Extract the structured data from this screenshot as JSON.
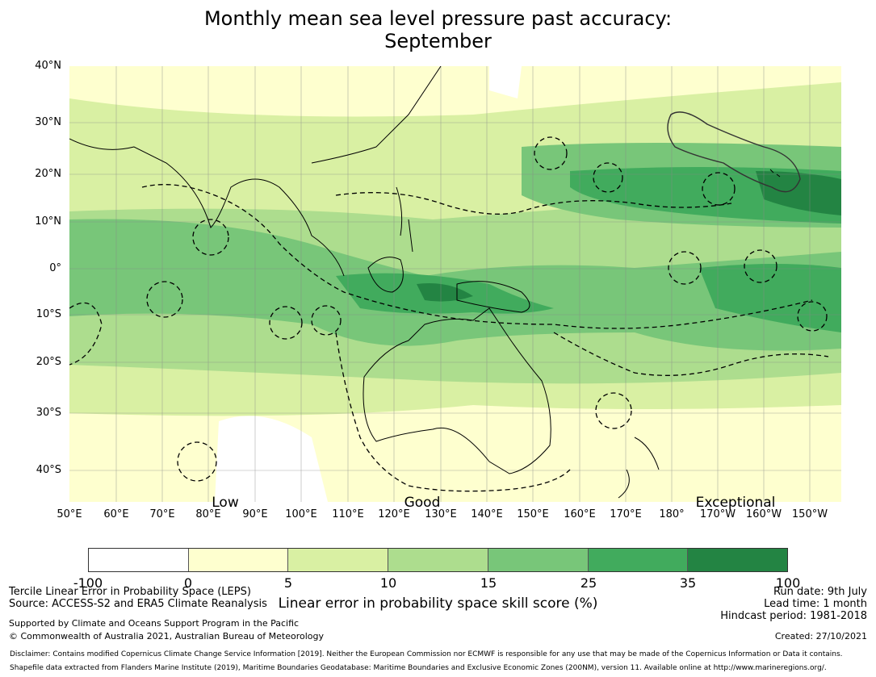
{
  "title_line1": "Monthly mean sea level pressure past accuracy:",
  "title_line2": "September",
  "lat_labels": [
    "40°N",
    "30°N",
    "20°N",
    "10°N",
    "0°",
    "10°S",
    "20°S",
    "30°S",
    "40°S"
  ],
  "lon_labels": [
    "50°E",
    "60°E",
    "70°E",
    "80°E",
    "90°E",
    "100°E",
    "110°E",
    "120°E",
    "130°E",
    "140°E",
    "150°E",
    "160°E",
    "170°E",
    "180°",
    "170°W",
    "160°W",
    "150°W"
  ],
  "categories": [
    "Low",
    "Good",
    "Exceptional"
  ],
  "colorbar": {
    "label": "Linear error in probability space skill score (%)",
    "ticks": [
      "-100",
      "0",
      "5",
      "10",
      "15",
      "25",
      "35",
      "100"
    ],
    "colors": [
      "#ffffff",
      "#feffcf",
      "#d9f0a3",
      "#addd8e",
      "#78c679",
      "#41ab5d",
      "#238443"
    ]
  },
  "footer": {
    "line1": "Tercile Linear Error in Probability Space (LEPS)",
    "line2": "Source: ACCESS-S2 and ERA5 Climate Reanalysis",
    "line3": "Supported by Climate and Oceans Support Program in the Pacific",
    "line4": "© Commonwealth of Australia 2021, Australian Bureau of Meteorology",
    "run_date": "Run date: 9th July",
    "lead_time": "Lead time: 1 month",
    "hindcast": "Hindcast period: 1981-2018",
    "created": "Created: 27/10/2021",
    "disclaimer1": "Disclaimer: Contains modified Copernicus Climate Change Service Information [2019]. Neither the European Commission nor ECMWF is responsible for any use that may be made of the Copernicus Information or Data it contains.",
    "disclaimer2": "Shapefile data extracted from Flanders Marine Institute (2019), Maritime Boundaries Geodatabase: Maritime Boundaries and Exclusive Economic Zones (200NM), version 11. Available online at http://www.marineregions.org/."
  }
}
